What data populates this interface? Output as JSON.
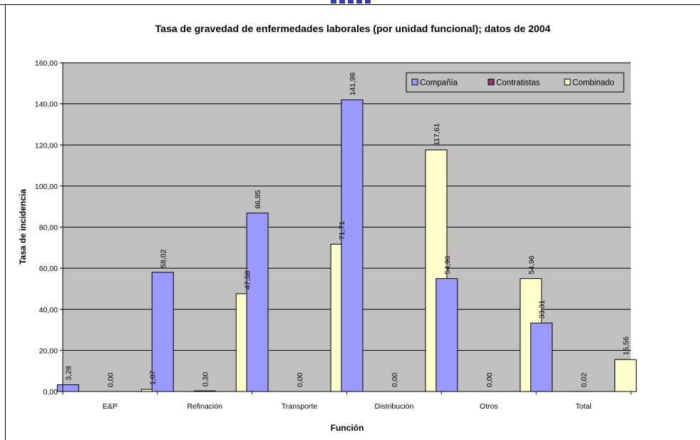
{
  "chart_data": {
    "type": "bar",
    "title": "Tasa de gravedad de enfermedades laborales (por unidad funcional); datos de 2004",
    "xlabel": "Función",
    "ylabel": "Tasa de incidencia",
    "ylim": [
      0,
      160
    ],
    "yticks": [
      "0,00",
      "20,00",
      "40,00",
      "60,00",
      "80,00",
      "100,00",
      "120,00",
      "140,00",
      "160,00"
    ],
    "categories": [
      "E&P",
      "Refinación",
      "Transporte",
      "Distribución",
      "Otros",
      "Total"
    ],
    "grid": true,
    "legend_position": "top-right",
    "plot_background": "#c0c0c0",
    "series": [
      {
        "name": "Compañía",
        "color": "#9999ff",
        "values": [
          3.28,
          58.02,
          86.85,
          141.98,
          54.96,
          33.31
        ],
        "labels": [
          "3,28",
          "58,02",
          "86,85",
          "141,98",
          "54,96",
          "33,31"
        ]
      },
      {
        "name": "Contratistas",
        "color": "#993366",
        "values": [
          0.0,
          0.3,
          0.0,
          0.0,
          0.0,
          0.02
        ],
        "labels": [
          "0,00",
          "0,30",
          "0,00",
          "0,00",
          "0,00",
          "0,02"
        ]
      },
      {
        "name": "Combinado",
        "color": "#ffffcc",
        "values": [
          1.07,
          47.58,
          71.71,
          117.61,
          54.96,
          15.56
        ],
        "labels": [
          "1,07",
          "47,58",
          "71,71",
          "117,61",
          "54,96",
          "15,56"
        ]
      }
    ]
  }
}
